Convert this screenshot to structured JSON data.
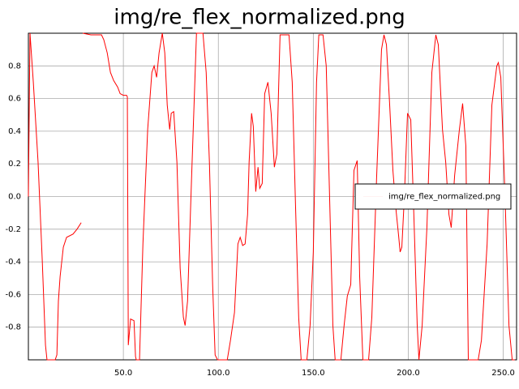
{
  "chart_data": {
    "type": "line",
    "title": "img/re_flex_normalized.png",
    "x": [
      0,
      0.85,
      2.6,
      5.1,
      7.3,
      9,
      9.8,
      14.1,
      15,
      15.8,
      16.7,
      18.4,
      20.1,
      23.5,
      25.6,
      27.8,
      28.2,
      28.6,
      32.9,
      38.5,
      39.7,
      41.5,
      43.2,
      44.9,
      47,
      48.3,
      50,
      51.7,
      52.1,
      52.6,
      53.8,
      55.6,
      56.4,
      56.8,
      58.5,
      60.3,
      62.8,
      65,
      66.2,
      67.5,
      68.8,
      70.5,
      71.8,
      73.1,
      74.4,
      75.2,
      76.5,
      78.2,
      79.9,
      81.6,
      82.5,
      83.8,
      85.9,
      88.5,
      91.9,
      93.6,
      95.3,
      97,
      98.3,
      99.6,
      104.7,
      106.4,
      108.5,
      110.3,
      111.5,
      112.8,
      114.1,
      115.4,
      116.2,
      117.5,
      118.4,
      119.7,
      120.9,
      121.8,
      123.1,
      124.4,
      126.1,
      127.8,
      129.5,
      130.8,
      132.5,
      137.2,
      138.9,
      140.6,
      142.3,
      143.6,
      146.6,
      148.3,
      150,
      151.7,
      152.9,
      155.1,
      156.8,
      158.1,
      160.3,
      161.5,
      164.5,
      166.2,
      167.9,
      169.7,
      171.4,
      173.1,
      174.4,
      176.1,
      179.1,
      180.8,
      183.3,
      185.9,
      187.2,
      188.5,
      190.2,
      191.9,
      193.6,
      194.9,
      195.7,
      196.6,
      197.9,
      199.6,
      201.3,
      203,
      204.7,
      205.6,
      207.3,
      209.8,
      212.4,
      214.5,
      215.8,
      218,
      219.7,
      221.4,
      222.6,
      224.4,
      226.9,
      228.6,
      230.3,
      231.6,
      236.8,
      238.5,
      241.5,
      244,
      246.6,
      247.4,
      248.7,
      250.9,
      253,
      254.7,
      256
    ],
    "series": [
      {
        "name": "img/re_flex_normalized.png",
        "color": "#ff0000",
        "values": [
          0,
          1,
          0.7,
          0.21,
          -0.39,
          -0.91,
          -1,
          -1,
          -0.97,
          -0.64,
          -0.49,
          -0.31,
          -0.25,
          -0.23,
          -0.2,
          -0.16,
          null,
          1,
          0.99,
          0.99,
          0.96,
          0.88,
          0.76,
          0.71,
          0.67,
          0.63,
          0.62,
          0.62,
          0.61,
          -0.91,
          -0.75,
          -0.76,
          -0.98,
          -1,
          -1,
          -0.29,
          0.41,
          0.76,
          0.8,
          0.73,
          0.88,
          1,
          0.88,
          0.56,
          0.41,
          0.51,
          0.52,
          0.21,
          -0.44,
          -0.74,
          -0.79,
          -0.64,
          0.11,
          1,
          1,
          0.76,
          0.21,
          -0.54,
          -0.97,
          -1,
          -1,
          -0.88,
          -0.71,
          -0.29,
          -0.25,
          -0.3,
          -0.29,
          -0.11,
          0.21,
          0.51,
          0.43,
          0.03,
          0.18,
          0.05,
          0.08,
          0.63,
          0.7,
          0.51,
          0.18,
          0.26,
          0.99,
          0.99,
          0.7,
          -0.04,
          -0.74,
          -1,
          -1,
          -0.79,
          -0.34,
          0.7,
          0.99,
          0.99,
          0.8,
          0.21,
          -0.79,
          -1,
          -1,
          -0.79,
          -0.61,
          -0.54,
          0.16,
          0.22,
          -0.49,
          -1,
          -1,
          -0.74,
          0.11,
          0.9,
          0.99,
          0.93,
          0.56,
          0.16,
          -0.09,
          -0.24,
          -0.34,
          -0.31,
          -0.01,
          0.51,
          0.47,
          -0.14,
          -0.79,
          -1,
          -0.79,
          -0.19,
          0.76,
          0.99,
          0.93,
          0.41,
          0.21,
          -0.11,
          -0.19,
          0.13,
          0.41,
          0.57,
          0.31,
          -1,
          -1,
          -0.88,
          -0.29,
          0.56,
          0.8,
          0.82,
          0.73,
          0.01,
          -0.79,
          -1,
          -1
        ]
      }
    ],
    "xlim": [
      0,
      257
    ],
    "ylim": [
      -1,
      1
    ],
    "xticks": [
      {
        "value": 50,
        "label": "50.0"
      },
      {
        "value": 100,
        "label": "100.0"
      },
      {
        "value": 150,
        "label": "150.0"
      },
      {
        "value": 200,
        "label": "200.0"
      },
      {
        "value": 250,
        "label": "250.0"
      }
    ],
    "yticks": [
      -0.8,
      -0.6,
      -0.4,
      -0.2,
      {
        "value": 0,
        "label": "0.0"
      },
      0.2,
      0.4,
      0.6,
      0.8
    ],
    "grid": true,
    "legend": "center right"
  }
}
